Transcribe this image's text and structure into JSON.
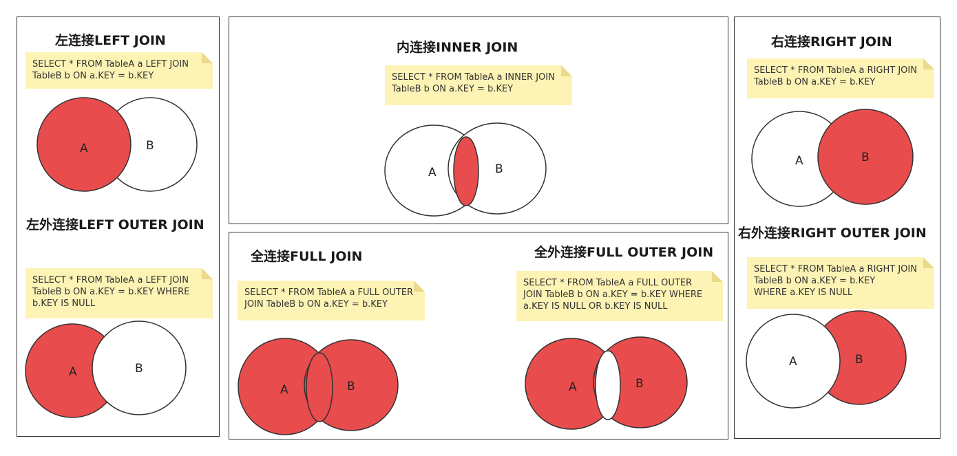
{
  "colors": {
    "fill": "#e84c4c",
    "note_bg": "#fdf3b5",
    "border": "#333333"
  },
  "left_join": {
    "title": "左连接LEFT JOIN",
    "sql": "SELECT * FROM TableA a LEFT JOIN\nTableB b ON a.KEY = b.KEY",
    "label_a": "A",
    "label_b": "B"
  },
  "left_outer_join": {
    "title": "左外连接LEFT OUTER JOIN",
    "sql": "SELECT * FROM TableA a LEFT JOIN\nTableB b ON a.KEY = b.KEY WHERE\nb.KEY IS NULL",
    "label_a": "A",
    "label_b": "B"
  },
  "inner_join": {
    "title": "内连接INNER JOIN",
    "sql": "SELECT * FROM TableA a INNER JOIN\nTableB b ON a.KEY = b.KEY",
    "label_a": "A",
    "label_b": "B"
  },
  "full_join": {
    "title": "全连接FULL JOIN",
    "sql": "SELECT * FROM TableA a FULL OUTER\nJOIN TableB b ON a.KEY = b.KEY",
    "label_a": "A",
    "label_b": "B"
  },
  "full_outer_join": {
    "title": "全外连接FULL OUTER JOIN",
    "sql": "SELECT * FROM TableA a FULL OUTER\nJOIN TableB b ON a.KEY = b.KEY WHERE\na.KEY IS NULL OR b.KEY IS NULL",
    "label_a": "A",
    "label_b": "B"
  },
  "right_join": {
    "title": "右连接RIGHT JOIN",
    "sql": "SELECT * FROM TableA a RIGHT JOIN\nTableB b ON a.KEY = b.KEY",
    "label_a": "A",
    "label_b": "B"
  },
  "right_outer_join": {
    "title": "右外连接RIGHT OUTER JOIN",
    "sql": "SELECT * FROM TableA a RIGHT JOIN\nTableB b ON a.KEY = b.KEY\nWHERE a.KEY IS NULL",
    "label_a": "A",
    "label_b": "B"
  }
}
